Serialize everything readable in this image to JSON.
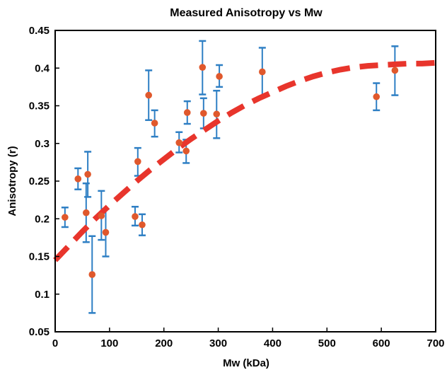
{
  "chart_data": {
    "type": "scatter",
    "title": "Measured Anisotropy vs Mw",
    "xlabel": "Mw (kDa)",
    "ylabel": "Anisotropy (r)",
    "xlim": [
      0,
      700
    ],
    "ylim": [
      0.05,
      0.45
    ],
    "xticks": [
      0,
      100,
      200,
      300,
      400,
      500,
      600,
      700
    ],
    "yticks": [
      0.05,
      0.1,
      0.15,
      0.2,
      0.25,
      0.3,
      0.35,
      0.4,
      0.45
    ],
    "grid": false,
    "colors": {
      "points": "#e0582c",
      "errorbars": "#2e7fc4",
      "fit": "#e8352c"
    },
    "series": [
      {
        "kind": "points-with-errorbars",
        "points": [
          {
            "x": 18,
            "y": 0.202,
            "low": 0.189,
            "high": 0.215
          },
          {
            "x": 42,
            "y": 0.253,
            "low": 0.239,
            "high": 0.267
          },
          {
            "x": 57,
            "y": 0.208,
            "low": 0.169,
            "high": 0.247
          },
          {
            "x": 60,
            "y": 0.259,
            "low": 0.229,
            "high": 0.289
          },
          {
            "x": 68,
            "y": 0.126,
            "low": 0.075,
            "high": 0.177
          },
          {
            "x": 85,
            "y": 0.204,
            "low": 0.172,
            "high": 0.237
          },
          {
            "x": 93,
            "y": 0.182,
            "low": 0.15,
            "high": 0.213
          },
          {
            "x": 147,
            "y": 0.203,
            "low": 0.191,
            "high": 0.216
          },
          {
            "x": 152,
            "y": 0.276,
            "low": 0.257,
            "high": 0.294
          },
          {
            "x": 160,
            "y": 0.192,
            "low": 0.178,
            "high": 0.206
          },
          {
            "x": 172,
            "y": 0.364,
            "low": 0.331,
            "high": 0.397
          },
          {
            "x": 183,
            "y": 0.327,
            "low": 0.309,
            "high": 0.344
          },
          {
            "x": 228,
            "y": 0.301,
            "low": 0.288,
            "high": 0.315
          },
          {
            "x": 241,
            "y": 0.29,
            "low": 0.274,
            "high": 0.305
          },
          {
            "x": 243,
            "y": 0.341,
            "low": 0.326,
            "high": 0.356
          },
          {
            "x": 271,
            "y": 0.401,
            "low": 0.365,
            "high": 0.436
          },
          {
            "x": 273,
            "y": 0.34,
            "low": 0.32,
            "high": 0.36
          },
          {
            "x": 297,
            "y": 0.339,
            "low": 0.307,
            "high": 0.37
          },
          {
            "x": 302,
            "y": 0.389,
            "low": 0.375,
            "high": 0.404
          },
          {
            "x": 381,
            "y": 0.395,
            "low": 0.362,
            "high": 0.427
          },
          {
            "x": 591,
            "y": 0.362,
            "low": 0.344,
            "high": 0.38
          },
          {
            "x": 625,
            "y": 0.397,
            "low": 0.364,
            "high": 0.429
          }
        ]
      },
      {
        "kind": "fit-curve",
        "style": "dashed",
        "x": [
          0,
          25,
          50,
          75,
          100,
          125,
          150,
          175,
          200,
          225,
          250,
          275,
          300,
          325,
          350,
          375,
          400,
          425,
          450,
          475,
          500,
          525,
          550,
          575,
          600,
          625,
          650,
          675,
          700
        ],
        "y": [
          0.145,
          0.164,
          0.183,
          0.201,
          0.218,
          0.234,
          0.25,
          0.265,
          0.279,
          0.293,
          0.306,
          0.318,
          0.33,
          0.341,
          0.351,
          0.36,
          0.368,
          0.376,
          0.383,
          0.389,
          0.394,
          0.398,
          0.401,
          0.403,
          0.404,
          0.405,
          0.406,
          0.406,
          0.407
        ]
      }
    ]
  }
}
